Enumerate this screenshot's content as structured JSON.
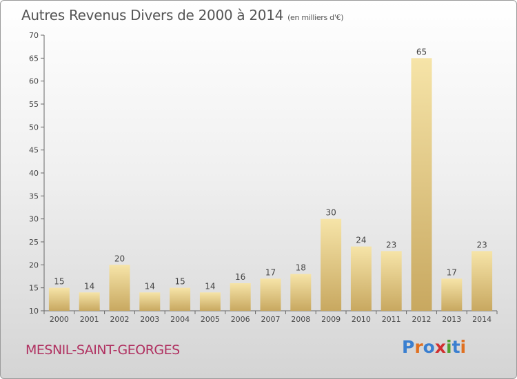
{
  "title": "Autres Revenus Divers de 2000 à 2014",
  "unit_note": "(en milliers d'€)",
  "commune": "MESNIL-SAINT-GEORGES",
  "logo": {
    "text": "Proxiti",
    "letters": [
      "P",
      "r",
      "o",
      "x",
      "i",
      "t",
      "i"
    ],
    "colors": [
      "#3a7fd0",
      "#e07020",
      "#3a7fd0",
      "#d03030",
      "#50a030",
      "#3a7fd0",
      "#e07020"
    ]
  },
  "colors": {
    "bar_light": "#f6e4a8",
    "bar_dark": "#c8a860",
    "title": "#555555",
    "commune": "#b03060"
  },
  "chart_data": {
    "type": "bar",
    "categories": [
      "2000",
      "2001",
      "2002",
      "2003",
      "2004",
      "2005",
      "2006",
      "2007",
      "2008",
      "2009",
      "2010",
      "2011",
      "2012",
      "2013",
      "2014"
    ],
    "values": [
      15,
      14,
      20,
      14,
      15,
      14,
      16,
      17,
      18,
      30,
      24,
      23,
      65,
      17,
      23
    ],
    "data_labels": [
      "15",
      "14",
      "20",
      "14",
      "15",
      "14",
      "16",
      "17",
      "18",
      "30",
      "24",
      "23",
      "65",
      "17",
      "23"
    ],
    "ylim": [
      10,
      70
    ],
    "yticks": [
      "10",
      "15",
      "20",
      "25",
      "30",
      "35",
      "40",
      "45",
      "50",
      "55",
      "60",
      "65",
      "70"
    ],
    "grid": false,
    "legend": "none"
  }
}
